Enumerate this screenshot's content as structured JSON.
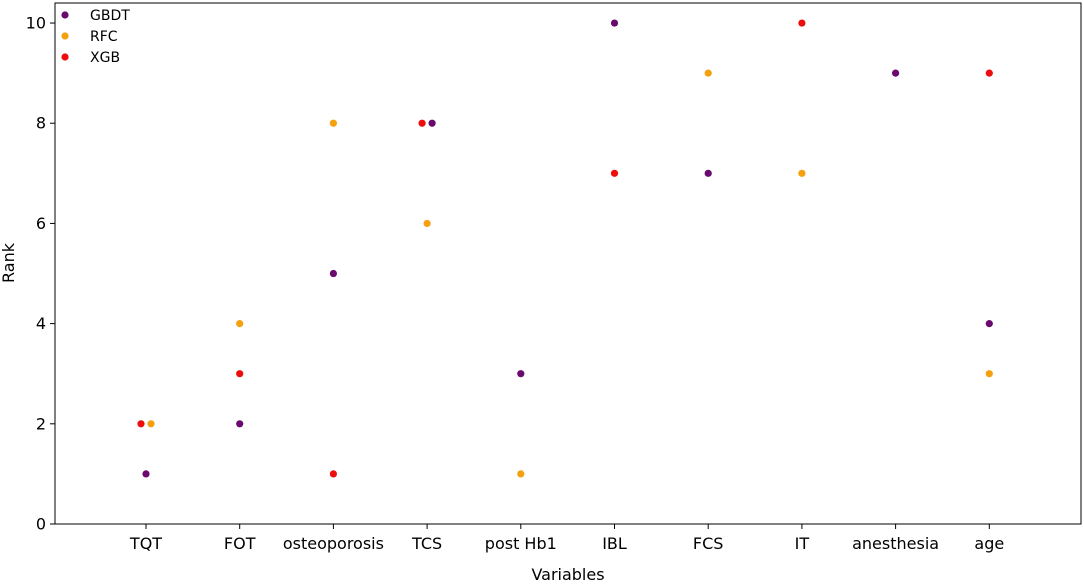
{
  "chart_data": {
    "type": "scatter",
    "title": "",
    "xlabel": "Variables",
    "ylabel": "Rank",
    "categories": [
      "TQT",
      "FOT",
      "osteoporosis",
      "TCS",
      "post Hb1",
      "IBL",
      "FCS",
      "IT",
      "anesthesia",
      "age"
    ],
    "ylim": [
      0,
      10.4
    ],
    "yticks": [
      0,
      2,
      4,
      6,
      8,
      10
    ],
    "grid": false,
    "legend": "top-left",
    "series": [
      {
        "name": "GBDT",
        "color": "#6a0a6e",
        "points": [
          {
            "category": "TQT",
            "y": 1
          },
          {
            "category": "FOT",
            "y": 2
          },
          {
            "category": "osteoporosis",
            "y": 5
          },
          {
            "category": "TCS",
            "y": 8
          },
          {
            "category": "post Hb1",
            "y": 3
          },
          {
            "category": "IBL",
            "y": 10
          },
          {
            "category": "FCS",
            "y": 7
          },
          {
            "category": "anesthesia",
            "y": 9
          },
          {
            "category": "age",
            "y": 4
          }
        ]
      },
      {
        "name": "RFC",
        "color": "#f5a00f",
        "points": [
          {
            "category": "TQT",
            "y": 2
          },
          {
            "category": "FOT",
            "y": 4
          },
          {
            "category": "osteoporosis",
            "y": 8
          },
          {
            "category": "TCS",
            "y": 6
          },
          {
            "category": "post Hb1",
            "y": 1
          },
          {
            "category": "FCS",
            "y": 9
          },
          {
            "category": "IT",
            "y": 7
          },
          {
            "category": "age",
            "y": 3
          }
        ]
      },
      {
        "name": "XGB",
        "color": "#ee0d0d",
        "points": [
          {
            "category": "TQT",
            "y": 2
          },
          {
            "category": "FOT",
            "y": 3
          },
          {
            "category": "osteoporosis",
            "y": 1
          },
          {
            "category": "TCS",
            "y": 8
          },
          {
            "category": "IBL",
            "y": 7
          },
          {
            "category": "IT",
            "y": 10
          },
          {
            "category": "age",
            "y": 9
          }
        ]
      }
    ]
  }
}
